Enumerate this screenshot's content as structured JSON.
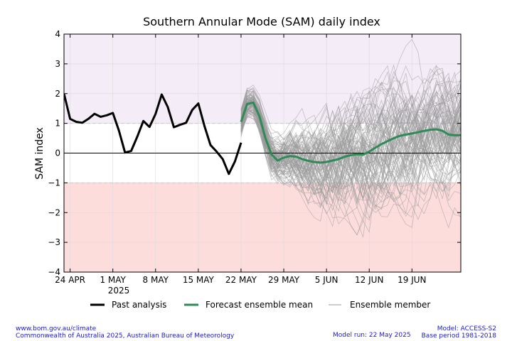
{
  "chart_data": {
    "type": "line",
    "title": "Southern Annular Mode (SAM) daily index",
    "ylabel": "SAM index",
    "xlabel": "",
    "ylim": [
      -4,
      4
    ],
    "xlim_days": [
      -1,
      64
    ],
    "x_reference": "day 0 = 24 Apr 2025",
    "yticks": [
      "−4",
      "−3",
      "−2",
      "−1",
      "0",
      "1",
      "2",
      "3",
      "4"
    ],
    "xticks": [
      {
        "day": 0,
        "label": "24 APR"
      },
      {
        "day": 7,
        "label": "1 MAY"
      },
      {
        "day": 14,
        "label": "8 MAY"
      },
      {
        "day": 21,
        "label": "15 MAY"
      },
      {
        "day": 28,
        "label": "22 MAY"
      },
      {
        "day": 35,
        "label": "29 MAY"
      },
      {
        "day": 42,
        "label": "5 JUN"
      },
      {
        "day": 49,
        "label": "12 JUN"
      },
      {
        "day": 56,
        "label": "19 JUN"
      }
    ],
    "year_label": "2025",
    "shading": [
      {
        "from": 1,
        "to": 4,
        "color": "#f4ecf6"
      },
      {
        "from": -4,
        "to": -1,
        "color": "#fddcdc"
      }
    ],
    "series": [
      {
        "name": "Past analysis",
        "color": "#000000",
        "x": [
          -1,
          0,
          1,
          2,
          3,
          4,
          5,
          6,
          7,
          8,
          9,
          10,
          11,
          12,
          13,
          14,
          15,
          16,
          17,
          18,
          19,
          20,
          21,
          22,
          23,
          24,
          25,
          26,
          27,
          28
        ],
        "y": [
          2.0,
          1.15,
          1.05,
          1.02,
          1.15,
          1.32,
          1.22,
          1.27,
          1.35,
          0.75,
          0.02,
          0.07,
          0.55,
          1.08,
          0.88,
          1.32,
          1.97,
          1.55,
          0.87,
          0.95,
          1.02,
          1.45,
          1.67,
          0.92,
          0.27,
          0.05,
          -0.2,
          -0.7,
          -0.28,
          0.35
        ]
      },
      {
        "name": "Forecast ensemble mean",
        "color": "#2e8b57",
        "x": [
          28,
          29,
          30,
          31,
          32,
          33,
          34,
          35,
          36,
          37,
          38,
          39,
          40,
          41,
          42,
          43,
          44,
          45,
          46,
          47,
          48,
          49,
          50,
          51,
          52,
          53,
          54,
          55,
          56,
          57,
          58,
          59,
          60,
          61,
          62,
          63,
          64
        ],
        "y": [
          1.05,
          1.65,
          1.7,
          1.25,
          0.5,
          -0.05,
          -0.25,
          -0.15,
          -0.1,
          -0.12,
          -0.2,
          -0.26,
          -0.3,
          -0.32,
          -0.3,
          -0.25,
          -0.2,
          -0.12,
          -0.07,
          -0.04,
          -0.05,
          0.05,
          0.18,
          0.3,
          0.4,
          0.5,
          0.58,
          0.62,
          0.66,
          0.7,
          0.75,
          0.78,
          0.8,
          0.75,
          0.62,
          0.6,
          0.6
        ]
      },
      {
        "name": "Ensemble member",
        "color": "#9a9a9a"
      }
    ]
  },
  "legend": [
    {
      "label": "Past analysis",
      "color": "#000000"
    },
    {
      "label": "Forecast ensemble mean",
      "color": "#2e8b57"
    },
    {
      "label": "Ensemble member",
      "color": "#9a9a9a"
    }
  ],
  "footer": {
    "left_line1": "www.bom.gov.au/climate",
    "left_line2": "Commonwealth of Australia 2025, Australian Bureau of Meteorology",
    "model": "Model: ACCESS-S2",
    "model_run": "Model run: 22 May 2025",
    "base_period": "Base period 1981-2018"
  }
}
